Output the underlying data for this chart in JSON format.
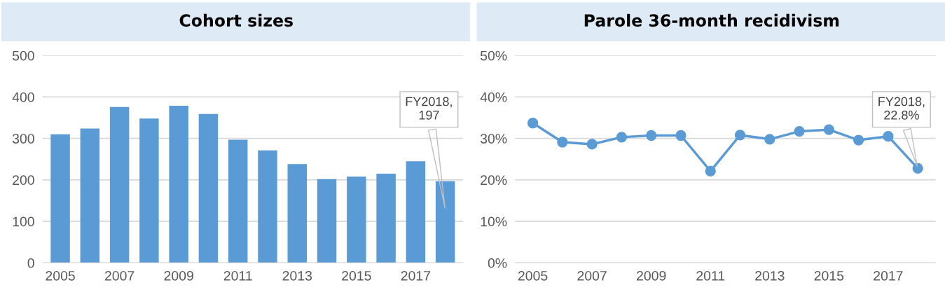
{
  "chart_data": [
    {
      "type": "bar",
      "title": "Cohort sizes",
      "categories": [
        "2005",
        null,
        "2007",
        null,
        "2009",
        null,
        "2011",
        null,
        "2013",
        null,
        "2015",
        null,
        "2017",
        null
      ],
      "series": [
        {
          "color": "#5b9bd5",
          "values": [
            310,
            324,
            376,
            348,
            379,
            359,
            297,
            271,
            238,
            202,
            208,
            215,
            245,
            197
          ]
        }
      ],
      "ylim": [
        0,
        500
      ],
      "yticks": [
        0,
        100,
        200,
        300,
        400,
        500
      ],
      "grid": "y",
      "annotations": [
        "FY2018,\n197"
      ]
    },
    {
      "type": "line",
      "title": "Parole 36-month recidivism",
      "categories": [
        "2005",
        null,
        "2007",
        null,
        "2009",
        null,
        "2011",
        null,
        "2013",
        null,
        "2015",
        null,
        "2017",
        null
      ],
      "series": [
        {
          "color": "#5b9bd5",
          "values": [
            33.7,
            29.1,
            28.6,
            30.3,
            30.7,
            30.7,
            22.1,
            30.8,
            29.8,
            31.7,
            32.1,
            29.6,
            30.5,
            22.8
          ]
        }
      ],
      "ylim": [
        0,
        50
      ],
      "yticks": [
        {
          "value": 0,
          "label": "0%"
        },
        {
          "value": 10,
          "label": "10%"
        },
        {
          "value": 20,
          "label": "20%"
        },
        {
          "value": 30,
          "label": "30%"
        },
        {
          "value": 40,
          "label": "40%"
        },
        {
          "value": 50,
          "label": "50%"
        }
      ],
      "grid": "y",
      "marker": "circle",
      "line_style": "solid",
      "annotations": [
        "FY2018,\n22.8%"
      ]
    }
  ]
}
